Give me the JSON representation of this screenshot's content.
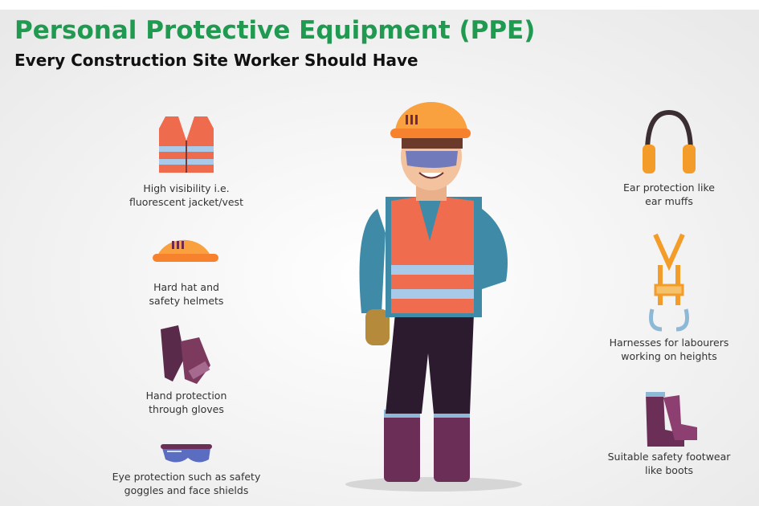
{
  "header": {
    "title": "Personal Protective Equipment (PPE)",
    "subtitle": "Every Construction Site Worker Should Have"
  },
  "items": [
    {
      "lines": [
        "High visibility i.e.",
        "fluorescent jacket/vest"
      ]
    },
    {
      "lines": [
        "Hard hat and",
        "safety helmets"
      ]
    },
    {
      "lines": [
        "Hand protection",
        "through gloves"
      ]
    },
    {
      "lines": [
        "Eye protection such as safety",
        "goggles and face shields"
      ]
    },
    {
      "lines": [
        "Ear protection like",
        "ear muffs"
      ]
    },
    {
      "lines": [
        "Harnesses for labourers",
        "working on heights"
      ]
    },
    {
      "lines": [
        "Suitable safety footwear",
        "like boots"
      ]
    }
  ]
}
